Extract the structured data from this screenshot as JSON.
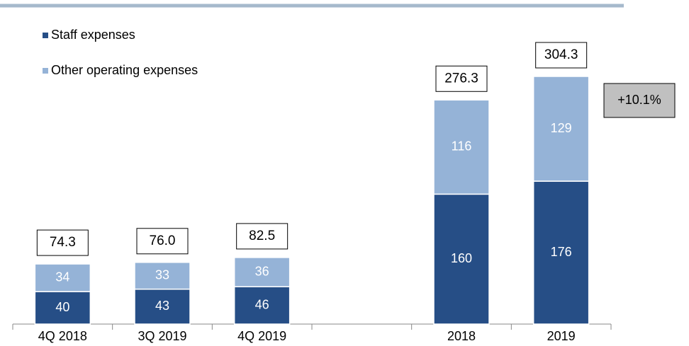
{
  "chart_data": {
    "type": "stacked_bar",
    "categories": [
      "4Q 2018",
      "3Q 2019",
      "4Q 2019",
      null,
      "2018",
      "2019"
    ],
    "series": [
      {
        "name": "Staff expenses",
        "color": "#264e86",
        "values": [
          40,
          43,
          46,
          null,
          160,
          176
        ]
      },
      {
        "name": "Other operating expenses",
        "color": "#95b3d7",
        "values": [
          34,
          33,
          36,
          null,
          116,
          129
        ]
      }
    ],
    "totals": {
      "values": [
        74.3,
        76.0,
        82.5,
        null,
        276.3,
        304.3
      ],
      "value_labels": [
        "74.3",
        "76.0",
        "82.5",
        null,
        "276.3",
        "304.3"
      ]
    },
    "annotation": "+10.1%",
    "legend": "top-left"
  }
}
